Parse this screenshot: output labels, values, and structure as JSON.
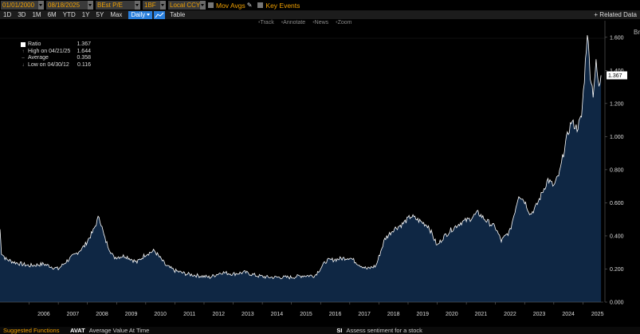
{
  "toolbar": {
    "start_date": "01/01/2000",
    "end_date": "08/18/2025",
    "metric": "BEst P/E",
    "unit": "1BF",
    "currency": "Local CCY",
    "mov_avgs_label": "Mov Avgs",
    "key_events_label": "Key Events"
  },
  "periods": [
    "1D",
    "3D",
    "1M",
    "6M",
    "YTD",
    "1Y",
    "5Y",
    "Max"
  ],
  "frequency": "Daily",
  "table_label": "Table",
  "related_data_label": "+ Related Data",
  "chart_tools": [
    "Track",
    "Annotate",
    "News",
    "Zoom"
  ],
  "legend": {
    "series_label": "Ratio",
    "series_value": "1.367",
    "high_label": "High on 04/21/25",
    "high_value": "1.644",
    "average_label": "Average",
    "average_value": "0.358",
    "low_label": "Low on 04/30/12",
    "low_value": "0.116"
  },
  "right_edge_text": "Br",
  "last_value_label": "1.367",
  "status_bar": {
    "left_label": "Suggested Functions",
    "fn1_code": "AVAT",
    "fn1_desc": "Average Value At Time",
    "fn2_code": "SI",
    "fn2_desc": "Assess sentiment for a stock"
  },
  "colors": {
    "accent": "#f0a000",
    "selected": "#2a7fdc",
    "area_fill": "#0f2744",
    "line": "#ffffff"
  },
  "chart_data": {
    "type": "area",
    "x_ticks": [
      "2006",
      "2007",
      "2008",
      "2009",
      "2010",
      "2011",
      "2012",
      "2013",
      "2014",
      "2015",
      "2016",
      "2017",
      "2018",
      "2019",
      "2020",
      "2021",
      "2022",
      "2023",
      "2024",
      "2025"
    ],
    "y_ticks": [
      "0.000",
      "0.200",
      "0.400",
      "0.600",
      "0.800",
      "1.000",
      "1.200",
      "1.400",
      "1.600"
    ],
    "ylim": [
      0,
      1.7
    ],
    "xlim": [
      2005.0,
      2025.7
    ],
    "grid": false,
    "x": [
      2005.0,
      2005.05,
      2005.2,
      2005.5,
      2006.0,
      2006.5,
      2007.0,
      2007.3,
      2007.6,
      2007.9,
      2008.2,
      2008.4,
      2008.6,
      2008.9,
      2009.3,
      2009.7,
      2010.0,
      2010.3,
      2010.7,
      2011.0,
      2011.4,
      2011.8,
      2012.2,
      2012.6,
      2013.0,
      2013.4,
      2013.8,
      2014.2,
      2014.6,
      2015.0,
      2015.4,
      2015.8,
      2016.2,
      2016.6,
      2017.0,
      2017.3,
      2017.6,
      2017.9,
      2018.2,
      2018.5,
      2018.8,
      2019.1,
      2019.4,
      2019.7,
      2020.0,
      2020.2,
      2020.5,
      2020.8,
      2021.1,
      2021.4,
      2021.7,
      2022.0,
      2022.2,
      2022.5,
      2022.8,
      2023.0,
      2023.2,
      2023.4,
      2023.6,
      2023.8,
      2024.0,
      2024.2,
      2024.4,
      2024.6,
      2024.8,
      2024.95,
      2025.05,
      2025.15,
      2025.25,
      2025.35,
      2025.45,
      2025.55,
      2025.62
    ],
    "values": [
      0.44,
      0.3,
      0.26,
      0.24,
      0.22,
      0.23,
      0.2,
      0.25,
      0.29,
      0.34,
      0.43,
      0.52,
      0.38,
      0.27,
      0.28,
      0.24,
      0.29,
      0.31,
      0.22,
      0.19,
      0.17,
      0.16,
      0.15,
      0.18,
      0.17,
      0.18,
      0.16,
      0.15,
      0.15,
      0.15,
      0.16,
      0.16,
      0.25,
      0.26,
      0.27,
      0.23,
      0.2,
      0.22,
      0.38,
      0.44,
      0.47,
      0.52,
      0.49,
      0.46,
      0.34,
      0.39,
      0.44,
      0.48,
      0.5,
      0.54,
      0.49,
      0.45,
      0.37,
      0.43,
      0.65,
      0.61,
      0.53,
      0.58,
      0.66,
      0.74,
      0.7,
      0.78,
      0.96,
      1.09,
      1.05,
      1.12,
      1.35,
      1.64,
      1.38,
      1.26,
      1.44,
      1.29,
      1.37
    ]
  }
}
